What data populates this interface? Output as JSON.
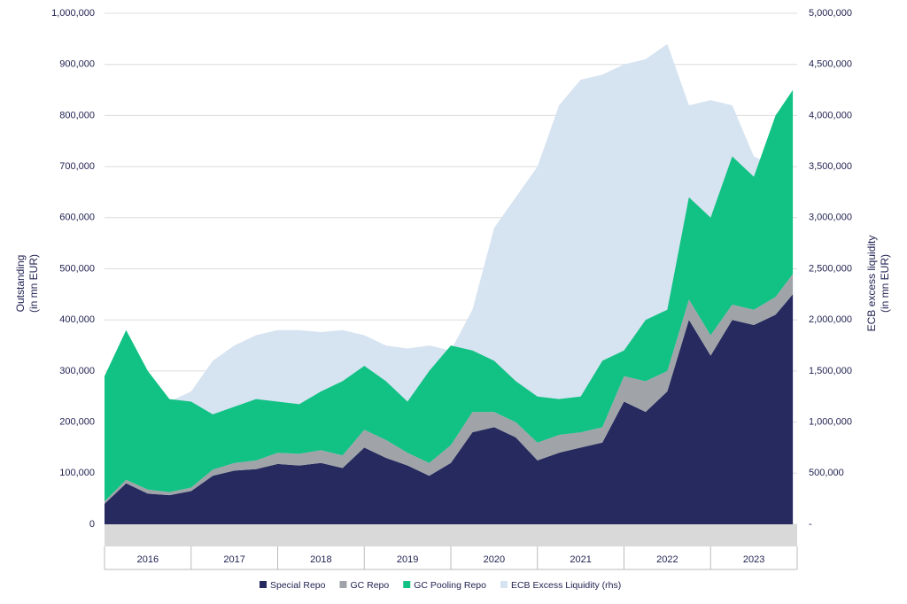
{
  "chart_data": {
    "type": "area",
    "stacked": true,
    "ylabel": [
      "Outstanding",
      "(in mn EUR)"
    ],
    "y2label": [
      "ECB excess liquidity",
      "(in mn EUR)"
    ],
    "categories": [
      "2016",
      "2017",
      "2018",
      "2019",
      "2020",
      "2021",
      "2022",
      "2023"
    ],
    "x": [
      2016,
      2016.25,
      2016.5,
      2016.75,
      2017,
      2017.25,
      2017.5,
      2017.75,
      2018,
      2018.25,
      2018.5,
      2018.75,
      2019,
      2019.25,
      2019.5,
      2019.75,
      2020,
      2020.25,
      2020.5,
      2020.75,
      2021,
      2021.25,
      2021.5,
      2021.75,
      2022,
      2022.25,
      2022.5,
      2022.75,
      2023,
      2023.25,
      2023.5,
      2023.75,
      2023.95
    ],
    "xlim": [
      2016,
      2024
    ],
    "ylim": [
      0,
      1000000
    ],
    "yticks": [
      0,
      {
        "value": 100000,
        "label": "100,000"
      },
      {
        "value": 200000,
        "label": "200,000"
      },
      {
        "value": 300000,
        "label": "300,000"
      },
      {
        "value": 400000,
        "label": "400,000"
      },
      {
        "value": 500000,
        "label": "500,000"
      },
      {
        "value": 600000,
        "label": "600,000"
      },
      {
        "value": 700000,
        "label": "700,000"
      },
      {
        "value": 800000,
        "label": "800,000"
      },
      {
        "value": 900000,
        "label": "900,000"
      },
      {
        "value": 1000000,
        "label": "1,000,000"
      }
    ],
    "y2lim": [
      0,
      5000000
    ],
    "y2ticks": [
      {
        "value": 0,
        "label": "-"
      },
      {
        "value": 500000,
        "label": "500,000"
      },
      {
        "value": 1000000,
        "label": "1,000,000"
      },
      {
        "value": 1500000,
        "label": "1,500,000"
      },
      {
        "value": 2000000,
        "label": "2,000,000"
      },
      {
        "value": 2500000,
        "label": "2,500,000"
      },
      {
        "value": 3000000,
        "label": "3,000,000"
      },
      {
        "value": 3500000,
        "label": "3,500,000"
      },
      {
        "value": 4000000,
        "label": "4,000,000"
      },
      {
        "value": 4500000,
        "label": "4,500,000"
      },
      {
        "value": 5000000,
        "label": "5,000,000"
      }
    ],
    "grid": true,
    "series": [
      {
        "name": "Special Repo",
        "color": "#262a5e",
        "values": [
          40000,
          80000,
          60000,
          57000,
          65000,
          95000,
          105000,
          108000,
          118000,
          115000,
          120000,
          110000,
          150000,
          130000,
          115000,
          95000,
          120000,
          180000,
          190000,
          170000,
          125000,
          140000,
          150000,
          160000,
          240000,
          220000,
          260000,
          400000,
          330000,
          400000,
          390000,
          410000,
          450000
        ]
      },
      {
        "name": "GC Repo",
        "color": "#a0a4a8",
        "values": [
          5000,
          7000,
          8000,
          6000,
          7000,
          12000,
          15000,
          17000,
          22000,
          23000,
          25000,
          25000,
          35000,
          35000,
          25000,
          25000,
          35000,
          40000,
          30000,
          30000,
          35000,
          35000,
          30000,
          30000,
          50000,
          60000,
          40000,
          40000,
          40000,
          30000,
          30000,
          35000,
          40000
        ]
      },
      {
        "name": "GC Pooling Repo",
        "color": "#12c184",
        "values": [
          245000,
          293000,
          232000,
          182000,
          168000,
          108000,
          110000,
          120000,
          100000,
          97000,
          115000,
          145000,
          125000,
          115000,
          100000,
          180000,
          195000,
          120000,
          100000,
          80000,
          90000,
          70000,
          70000,
          130000,
          50000,
          120000,
          120000,
          200000,
          230000,
          290000,
          260000,
          355000,
          360000
        ]
      },
      {
        "name": "ECB Excess Liquidity (rhs)",
        "color": "#d6e3f1",
        "axis": "y2",
        "values": [
          625000,
          900000,
          1050000,
          1200000,
          1300000,
          1600000,
          1750000,
          1850000,
          1900000,
          1900000,
          1880000,
          1900000,
          1850000,
          1750000,
          1720000,
          1750000,
          1700000,
          2100000,
          2900000,
          3200000,
          3500000,
          4100000,
          4350000,
          4400000,
          4500000,
          4550000,
          4700000,
          4100000,
          4150000,
          4100000,
          3600000,
          3500000,
          3500000
        ]
      }
    ]
  }
}
